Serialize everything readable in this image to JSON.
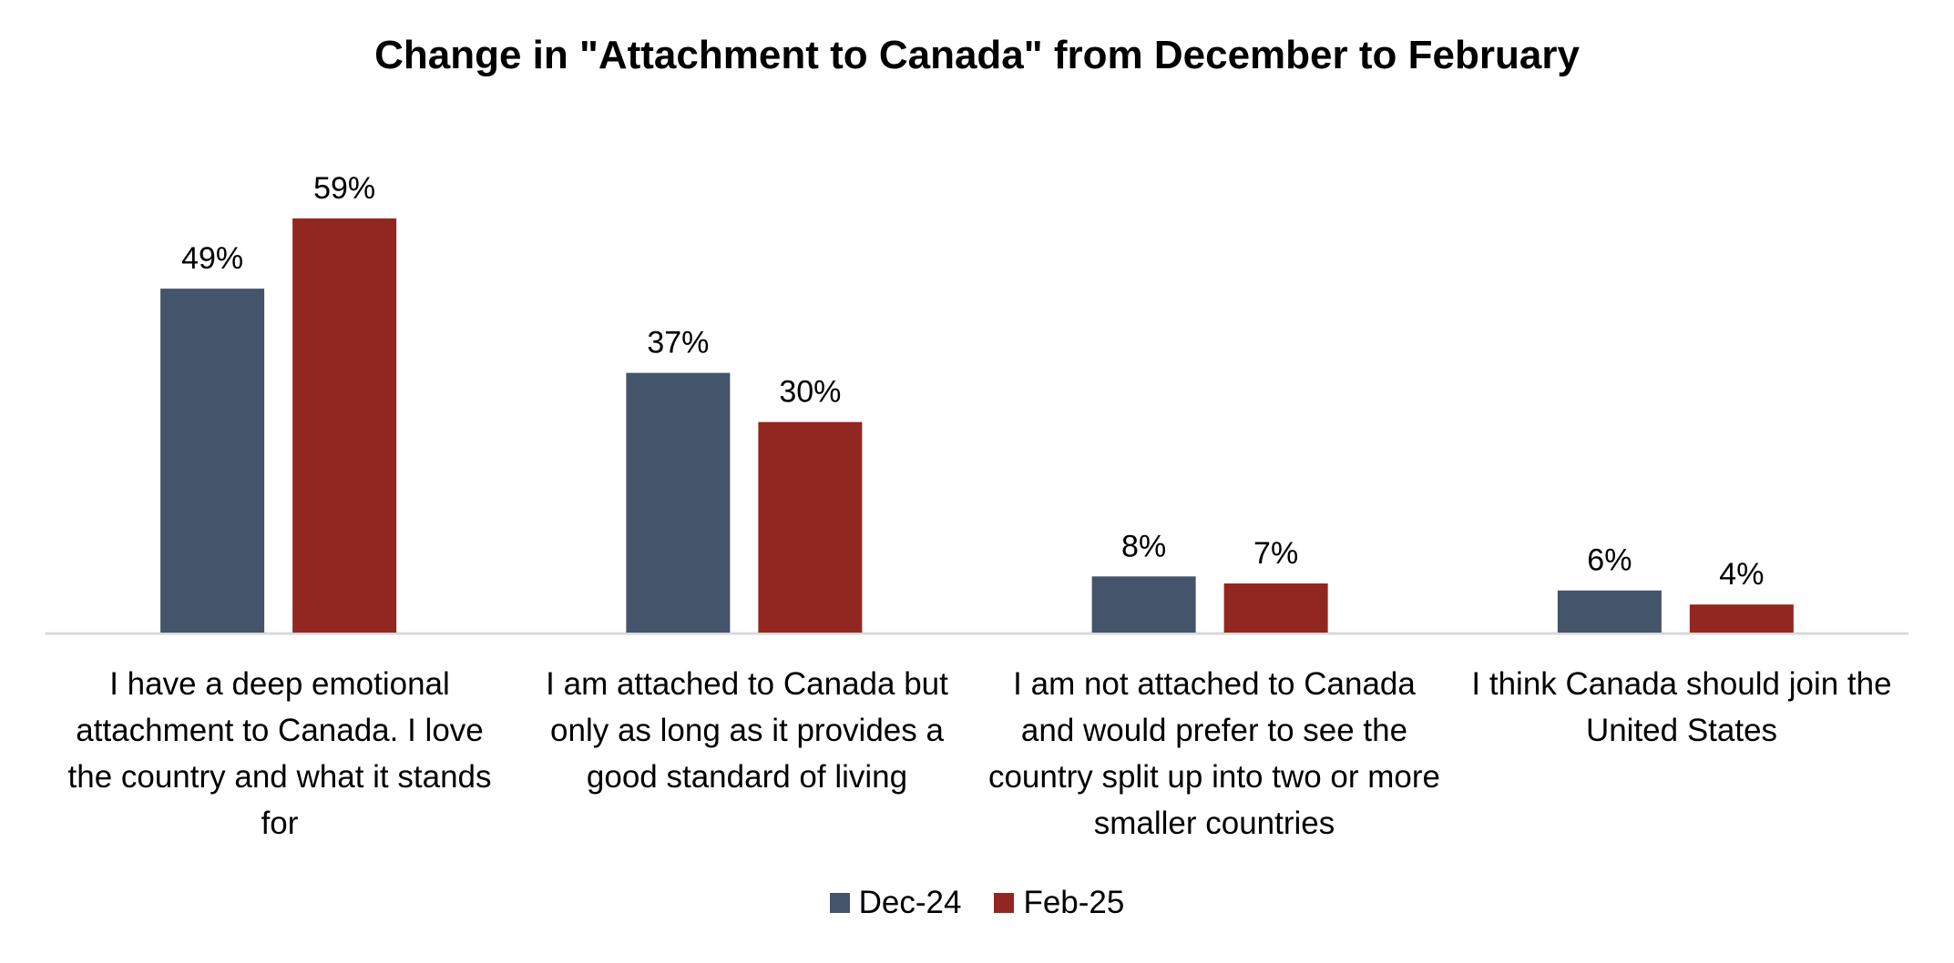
{
  "chart_data": {
    "type": "bar",
    "title": "Change in \"Attachment to Canada\" from December to February",
    "categories": [
      "I have a deep emotional attachment to Canada. I love the country and what it stands for",
      "I am attached to Canada but only as long as it provides a good standard of living",
      "I am not attached to Canada and would prefer to see the country split up into two or more smaller countries",
      "I think Canada should join the United States"
    ],
    "series": [
      {
        "name": "Dec-24",
        "color": "#44546a",
        "values": [
          49,
          37,
          8,
          6
        ],
        "labels": [
          "49%",
          "37%",
          "8%",
          "6%"
        ]
      },
      {
        "name": "Feb-25",
        "color": "#922722",
        "values": [
          59,
          30,
          7,
          4
        ],
        "labels": [
          "59%",
          "30%",
          "7%",
          "4%"
        ]
      }
    ],
    "ylim": [
      0,
      59
    ],
    "grid": false,
    "legend_position": "bottom",
    "xlabel": "",
    "ylabel": ""
  }
}
